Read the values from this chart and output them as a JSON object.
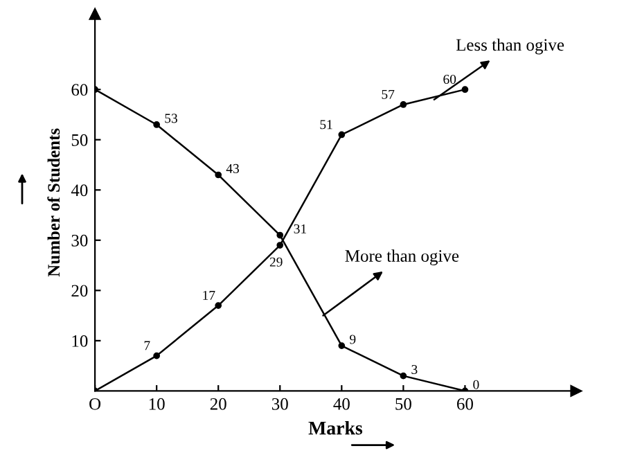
{
  "chart_data": {
    "type": "line",
    "xlabel": "Marks",
    "ylabel": "Number of Students",
    "x": [
      0,
      10,
      20,
      30,
      40,
      50,
      60
    ],
    "series": [
      {
        "color": "#000000",
        "values": [
          0,
          7,
          17,
          29,
          51,
          57,
          60
        ],
        "value_labels": [
          null,
          "7",
          "17",
          "29",
          "51",
          "57",
          "60"
        ]
      },
      {
        "color": "#000000",
        "values": [
          60,
          53,
          43,
          31,
          9,
          3,
          0
        ],
        "value_labels": [
          null,
          "53",
          "43",
          "31",
          "9",
          "3",
          "0"
        ]
      }
    ],
    "annotations": [
      {
        "text": "Less than ogive",
        "x": 55,
        "y": 58
      },
      {
        "text": "More than ogive",
        "x": 37,
        "y": 15
      }
    ],
    "xlim": [
      0,
      78
    ],
    "ylim": [
      0,
      75
    ],
    "xticks": [
      {
        "value": 0,
        "label": "O"
      },
      10,
      20,
      30,
      40,
      50,
      60
    ],
    "yticks": [
      10,
      20,
      30,
      40,
      50,
      60
    ],
    "marker": "circle",
    "line_style": "solid",
    "grid": false,
    "legend": false
  }
}
